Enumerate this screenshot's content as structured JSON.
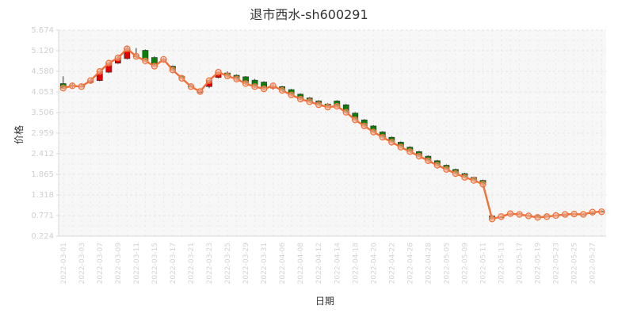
{
  "chart_data": {
    "type": "candlestick",
    "title": "退市西水-sh600291",
    "xlabel": "日期",
    "ylabel": "价格",
    "yticks": [
      "0.224",
      "0.771",
      "1.318",
      "1.865",
      "2.412",
      "2.959",
      "3.506",
      "4.053",
      "4.580",
      "5.120",
      "5.674"
    ],
    "ylim": [
      0.224,
      5.674
    ],
    "grid": true,
    "x": [
      "2022-03-01",
      "2022-03-02",
      "2022-03-03",
      "2022-03-04",
      "2022-03-07",
      "2022-03-08",
      "2022-03-09",
      "2022-03-10",
      "2022-03-11",
      "2022-03-14",
      "2022-03-15",
      "2022-03-16",
      "2022-03-17",
      "2022-03-18",
      "2022-03-21",
      "2022-03-22",
      "2022-03-23",
      "2022-03-24",
      "2022-03-25",
      "2022-03-28",
      "2022-03-29",
      "2022-03-30",
      "2022-03-31",
      "2022-04-01",
      "2022-04-06",
      "2022-04-07",
      "2022-04-08",
      "2022-04-11",
      "2022-04-12",
      "2022-04-13",
      "2022-04-14",
      "2022-04-15",
      "2022-04-18",
      "2022-04-19",
      "2022-04-20",
      "2022-04-21",
      "2022-04-22",
      "2022-04-25",
      "2022-04-26",
      "2022-04-27",
      "2022-04-28",
      "2022-04-29",
      "2022-05-05",
      "2022-05-06",
      "2022-05-09",
      "2022-05-10",
      "2022-05-11",
      "2022-05-12",
      "2022-05-13",
      "2022-05-16",
      "2022-05-17",
      "2022-05-18",
      "2022-05-19",
      "2022-05-20",
      "2022-05-23",
      "2022-05-24",
      "2022-05-25",
      "2022-05-26",
      "2022-05-27",
      "2022-05-30"
    ],
    "xticks": [
      "2022-03-01",
      "2022-03-03",
      "2022-03-07",
      "2022-03-09",
      "2022-03-11",
      "2022-03-15",
      "2022-03-17",
      "2022-03-21",
      "2022-03-23",
      "2022-03-25",
      "2022-03-29",
      "2022-03-31",
      "2022-04-06",
      "2022-04-08",
      "2022-04-12",
      "2022-04-14",
      "2022-04-18",
      "2022-04-20",
      "2022-04-22",
      "2022-04-26",
      "2022-04-28",
      "2022-05-05",
      "2022-05-09",
      "2022-05-11",
      "2022-05-13",
      "2022-05-17",
      "2022-05-19",
      "2022-05-23",
      "2022-05-25",
      "2022-05-27"
    ],
    "open": [
      4.26,
      4.22,
      4.2,
      4.29,
      4.34,
      4.56,
      4.8,
      4.92,
      5.0,
      5.14,
      4.95,
      4.88,
      4.72,
      4.45,
      4.2,
      4.05,
      4.18,
      4.42,
      4.54,
      4.48,
      4.44,
      4.35,
      4.3,
      4.14,
      4.18,
      4.1,
      3.98,
      3.88,
      3.8,
      3.72,
      3.8,
      3.7,
      3.48,
      3.3,
      3.14,
      2.98,
      2.84,
      2.71,
      2.58,
      2.46,
      2.34,
      2.22,
      2.1,
      1.99,
      1.88,
      1.78,
      1.7,
      0.76,
      0.74,
      0.8,
      0.82,
      0.78,
      0.76,
      0.77,
      0.78,
      0.8,
      0.82,
      0.81,
      0.82,
      0.89
    ],
    "close": [
      4.14,
      4.2,
      4.18,
      4.34,
      4.58,
      4.8,
      4.94,
      5.18,
      4.98,
      4.86,
      4.72,
      4.9,
      4.62,
      4.4,
      4.18,
      4.05,
      4.34,
      4.56,
      4.46,
      4.38,
      4.26,
      4.18,
      4.12,
      4.2,
      4.08,
      3.96,
      3.85,
      3.78,
      3.7,
      3.64,
      3.66,
      3.5,
      3.3,
      3.14,
      2.98,
      2.84,
      2.71,
      2.58,
      2.46,
      2.34,
      2.22,
      2.1,
      1.99,
      1.88,
      1.78,
      1.7,
      1.6,
      0.68,
      0.74,
      0.82,
      0.8,
      0.76,
      0.72,
      0.74,
      0.77,
      0.8,
      0.81,
      0.8,
      0.86,
      0.87
    ],
    "high": [
      4.45,
      4.28,
      4.26,
      4.38,
      4.6,
      4.82,
      4.98,
      5.24,
      5.2,
      5.16,
      4.98,
      4.94,
      4.74,
      4.48,
      4.24,
      4.08,
      4.36,
      4.58,
      4.58,
      4.5,
      4.46,
      4.38,
      4.32,
      4.24,
      4.2,
      4.12,
      4.0,
      3.9,
      3.82,
      3.74,
      3.82,
      3.72,
      3.5,
      3.32,
      3.16,
      3.0,
      2.86,
      2.73,
      2.6,
      2.48,
      2.36,
      2.24,
      2.12,
      2.01,
      1.9,
      1.8,
      1.72,
      0.78,
      0.76,
      0.84,
      0.84,
      0.8,
      0.78,
      0.78,
      0.8,
      0.82,
      0.84,
      0.83,
      0.88,
      0.91
    ],
    "low": [
      4.12,
      4.14,
      4.15,
      4.27,
      4.32,
      4.54,
      4.78,
      4.9,
      4.94,
      4.84,
      4.7,
      4.84,
      4.6,
      4.38,
      4.16,
      4.0,
      4.14,
      4.4,
      4.42,
      4.34,
      4.22,
      4.14,
      4.08,
      4.1,
      4.04,
      3.94,
      3.84,
      3.76,
      3.68,
      3.62,
      3.64,
      3.48,
      3.28,
      3.12,
      2.96,
      2.82,
      2.69,
      2.56,
      2.44,
      2.32,
      2.2,
      2.08,
      1.97,
      1.86,
      1.76,
      1.68,
      1.58,
      0.66,
      0.72,
      0.78,
      0.78,
      0.74,
      0.7,
      0.72,
      0.75,
      0.78,
      0.79,
      0.78,
      0.8,
      0.85
    ],
    "line": [
      4.14,
      4.2,
      4.18,
      4.34,
      4.58,
      4.8,
      4.94,
      5.18,
      4.98,
      4.86,
      4.72,
      4.9,
      4.62,
      4.4,
      4.18,
      4.05,
      4.34,
      4.56,
      4.46,
      4.38,
      4.26,
      4.18,
      4.12,
      4.2,
      4.08,
      3.96,
      3.85,
      3.78,
      3.7,
      3.64,
      3.66,
      3.5,
      3.3,
      3.14,
      2.98,
      2.84,
      2.71,
      2.58,
      2.46,
      2.34,
      2.22,
      2.1,
      1.99,
      1.88,
      1.78,
      1.7,
      1.6,
      0.68,
      0.74,
      0.82,
      0.8,
      0.76,
      0.72,
      0.74,
      0.77,
      0.8,
      0.81,
      0.8,
      0.86,
      0.87
    ],
    "colors": {
      "up": "#e00000",
      "down": "#0a7d0a",
      "line": "#f07038",
      "marker": "#f0b8a0",
      "grid": "#e3e3e3",
      "plot_bg": "#f7f7f7"
    }
  }
}
